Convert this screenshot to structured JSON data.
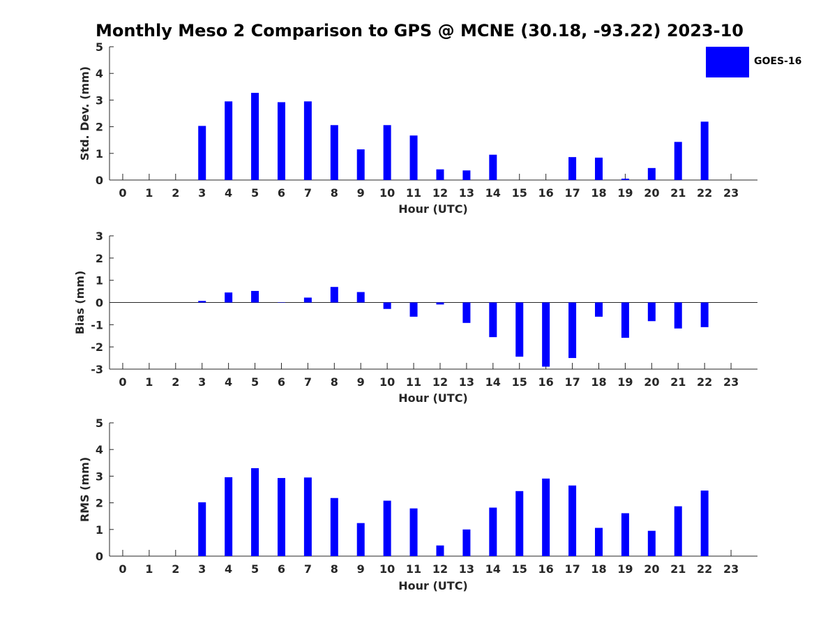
{
  "title": "Monthly Meso 2 Comparison to GPS @ MCNE (30.18, -93.22) 2023-10",
  "colors": {
    "bar": "#0000ff",
    "axis": "#262626"
  },
  "legend": {
    "label": "GOES-16"
  },
  "chart_data": [
    {
      "type": "bar",
      "ylabel": "Std. Dev. (mm)",
      "xlabel": "Hour (UTC)",
      "ylim": [
        0,
        5
      ],
      "yticks": [
        0,
        1,
        2,
        3,
        4,
        5
      ],
      "categories": [
        "0",
        "1",
        "2",
        "3",
        "4",
        "5",
        "6",
        "7",
        "8",
        "9",
        "10",
        "11",
        "12",
        "13",
        "14",
        "15",
        "16",
        "17",
        "18",
        "19",
        "20",
        "21",
        "22",
        "23"
      ],
      "series": [
        {
          "name": "GOES-16",
          "values": [
            null,
            null,
            null,
            2.03,
            2.95,
            3.27,
            2.92,
            2.95,
            2.06,
            1.15,
            2.06,
            1.67,
            0.4,
            0.36,
            0.95,
            null,
            null,
            0.86,
            0.84,
            0.05,
            0.45,
            1.43,
            2.19,
            null
          ]
        }
      ],
      "zero_line": false
    },
    {
      "type": "bar",
      "ylabel": "Bias (mm)",
      "xlabel": "Hour (UTC)",
      "ylim": [
        -3,
        3
      ],
      "yticks": [
        -3,
        -2,
        -1,
        0,
        1,
        2,
        3
      ],
      "categories": [
        "0",
        "1",
        "2",
        "3",
        "4",
        "5",
        "6",
        "7",
        "8",
        "9",
        "10",
        "11",
        "12",
        "13",
        "14",
        "15",
        "16",
        "17",
        "18",
        "19",
        "20",
        "21",
        "22",
        "23"
      ],
      "series": [
        {
          "name": "GOES-16",
          "values": [
            null,
            null,
            null,
            0.07,
            0.45,
            0.52,
            0.0,
            0.22,
            0.7,
            0.47,
            -0.29,
            -0.64,
            -0.09,
            -0.92,
            -1.56,
            -2.44,
            -2.89,
            -2.5,
            -0.64,
            -1.59,
            -0.84,
            -1.17,
            -1.11,
            null
          ]
        }
      ],
      "zero_line": true
    },
    {
      "type": "bar",
      "ylabel": "RMS (mm)",
      "xlabel": "Hour (UTC)",
      "ylim": [
        0,
        5
      ],
      "yticks": [
        0,
        1,
        2,
        3,
        4,
        5
      ],
      "categories": [
        "0",
        "1",
        "2",
        "3",
        "4",
        "5",
        "6",
        "7",
        "8",
        "9",
        "10",
        "11",
        "12",
        "13",
        "14",
        "15",
        "16",
        "17",
        "18",
        "19",
        "20",
        "21",
        "22",
        "23"
      ],
      "series": [
        {
          "name": "GOES-16",
          "values": [
            null,
            null,
            null,
            2.02,
            2.96,
            3.3,
            2.93,
            2.95,
            2.18,
            1.24,
            2.08,
            1.79,
            0.4,
            1.0,
            1.82,
            2.44,
            2.91,
            2.65,
            1.06,
            1.61,
            0.95,
            1.87,
            2.46,
            null
          ]
        }
      ],
      "zero_line": false
    }
  ]
}
